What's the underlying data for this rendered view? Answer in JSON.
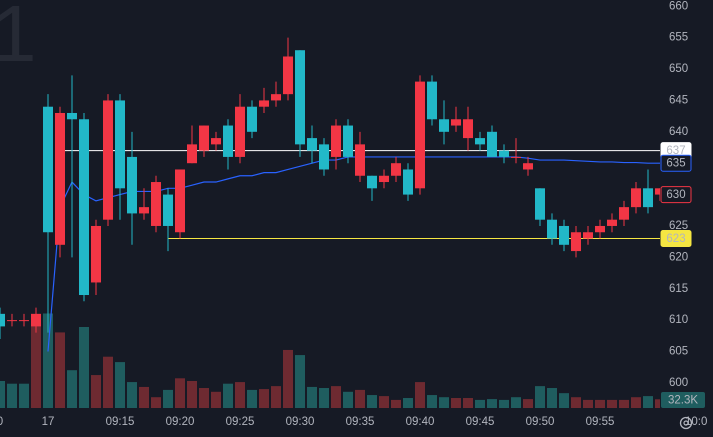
{
  "chart_data": {
    "type": "candlestick",
    "watermark": "1",
    "categories": [
      "0",
      null,
      null,
      null,
      "17",
      null,
      null,
      null,
      null,
      null,
      "09:15",
      null,
      null,
      null,
      null,
      "09:20",
      null,
      null,
      null,
      null,
      "09:25",
      null,
      null,
      null,
      null,
      "09:30",
      null,
      null,
      null,
      null,
      "09:35",
      null,
      null,
      null,
      null,
      "09:40",
      null,
      null,
      null,
      null,
      "09:45",
      null,
      null,
      null,
      null,
      "09:50",
      null,
      null,
      null,
      null,
      "09:55",
      null,
      null,
      null,
      null,
      "10:0"
    ],
    "open": [
      609,
      610,
      610,
      611,
      624,
      643,
      642,
      614,
      625,
      645,
      631,
      627,
      628,
      632,
      625,
      634,
      638,
      641,
      639,
      636,
      644,
      640,
      645,
      646,
      652,
      638,
      637,
      634,
      641,
      636,
      638,
      631,
      633,
      635,
      630,
      648,
      642,
      640,
      642,
      642,
      638,
      636,
      636,
      636,
      635,
      626,
      623,
      622,
      624,
      624,
      625,
      626,
      628,
      631,
      628,
      631
    ],
    "high": [
      612,
      611,
      611,
      612,
      646,
      644,
      649,
      643,
      626,
      646,
      646,
      640,
      631,
      633,
      631,
      634,
      641,
      641,
      640,
      642,
      646,
      645,
      647,
      648,
      655,
      653,
      641,
      639,
      642,
      642,
      640,
      633,
      634,
      636,
      635,
      649,
      649,
      645,
      644,
      644,
      640,
      641,
      638,
      639,
      636,
      631,
      627,
      626,
      625,
      625,
      626,
      627,
      629,
      632,
      634,
      631
    ],
    "low": [
      607,
      609,
      609,
      608,
      608,
      620,
      620,
      613,
      614,
      625,
      626,
      622,
      626,
      624,
      621,
      623,
      635,
      636,
      637,
      634,
      635,
      639,
      643,
      644,
      645,
      636,
      635,
      633,
      634,
      635,
      632,
      629,
      631,
      632,
      629,
      630,
      641,
      638,
      640,
      637,
      637,
      636,
      635,
      635,
      633,
      625,
      622,
      621,
      620,
      622,
      623,
      624,
      625,
      627,
      627,
      629
    ],
    "close": [
      611,
      610,
      610,
      609,
      644,
      622,
      643,
      642,
      616,
      626,
      645,
      636,
      627,
      625,
      630,
      624,
      635,
      637,
      638,
      641,
      636,
      644,
      644,
      645,
      646,
      653,
      639,
      638,
      636,
      641,
      633,
      633,
      632,
      633,
      634,
      631,
      648,
      642,
      641,
      639,
      639,
      640,
      637,
      636,
      634,
      631,
      626,
      625,
      621,
      623,
      624,
      625,
      626,
      628,
      631,
      630
    ],
    "volume": [
      100000,
      90000,
      90000,
      345000,
      350000,
      280000,
      140000,
      300000,
      122000,
      190000,
      170000,
      96000,
      78000,
      40000,
      67000,
      110000,
      100000,
      74000,
      60000,
      90000,
      96000,
      67000,
      70000,
      81000,
      215000,
      196000,
      78000,
      74000,
      81000,
      60000,
      67000,
      48000,
      44000,
      30000,
      37000,
      96000,
      48000,
      40000,
      37000,
      37000,
      30000,
      33000,
      30000,
      40000,
      33000,
      81000,
      74000,
      55000,
      40000,
      30000,
      30000,
      30000,
      30000,
      40000,
      44000,
      32300
    ],
    "volume_label": "32.3K",
    "vwap": [
      null,
      null,
      null,
      null,
      605,
      628,
      632,
      630,
      629,
      629.5,
      630,
      630.5,
      630.5,
      630.5,
      631,
      631,
      631.5,
      632,
      632,
      632.5,
      633,
      633,
      633.5,
      633.5,
      634,
      634.5,
      635,
      635.5,
      635.5,
      636,
      636,
      636,
      636,
      636,
      636,
      636,
      636,
      636,
      636,
      636,
      636,
      636,
      636,
      636,
      635.8,
      635.5,
      635.5,
      635.5,
      635.4,
      635.3,
      635.2,
      635.2,
      635.1,
      635.1,
      635,
      635
    ],
    "vwap_color": "#2962ff",
    "up_color": "#22b8c8",
    "down_color": "#f23645",
    "up_volume_color": "#1f5d5f",
    "down_volume_color": "#6e2a31",
    "hlines": [
      {
        "value": 637,
        "color": "#ffffff"
      },
      {
        "value": 623,
        "color": "#f5e642"
      }
    ],
    "ylim": [
      596,
      661
    ],
    "yticks": [
      600,
      605,
      610,
      615,
      620,
      625,
      630,
      635,
      640,
      645,
      650,
      655,
      660
    ],
    "y2lim": [
      0,
      400000
    ]
  }
}
